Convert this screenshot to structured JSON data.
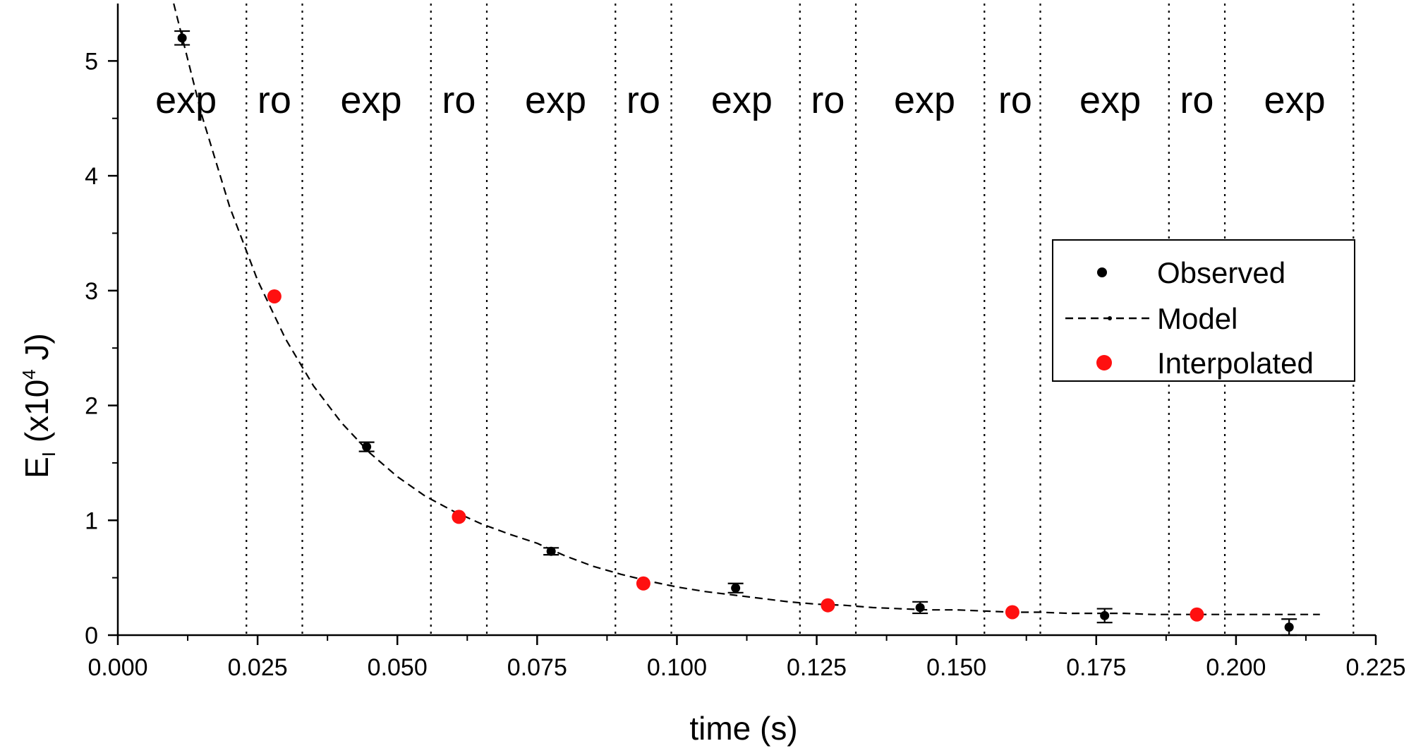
{
  "chart_data": {
    "type": "scatter",
    "xlabel": "time (s)",
    "ylabel": {
      "base": "E",
      "sub": "I",
      "rest_before_sup": " (x10",
      "sup": "4",
      "rest_after_sup": " J)"
    },
    "xlim": [
      0.0,
      0.225
    ],
    "ylim": [
      0,
      5.5
    ],
    "x_ticks": [
      0.0,
      0.025,
      0.05,
      0.075,
      0.1,
      0.125,
      0.15,
      0.175,
      0.2,
      0.225
    ],
    "x_tick_labels": [
      "0.000",
      "0.025",
      "0.050",
      "0.075",
      "0.100",
      "0.125",
      "0.150",
      "0.175",
      "0.200",
      "0.225"
    ],
    "y_ticks": [
      0,
      1,
      2,
      3,
      4,
      5
    ],
    "y_tick_labels": [
      "0",
      "1",
      "2",
      "3",
      "4",
      "5"
    ],
    "legend_position": "right",
    "legend": [
      {
        "label": "Observed",
        "style": "black-dot"
      },
      {
        "label": "Model",
        "style": "dashed-line"
      },
      {
        "label": "Interpolated",
        "style": "red-dot"
      }
    ],
    "series": [
      {
        "name": "Observed",
        "color": "#000000",
        "x": [
          0.0115,
          0.0445,
          0.0775,
          0.1105,
          0.1435,
          0.1765,
          0.2095
        ],
        "y": [
          5.2,
          1.64,
          0.73,
          0.41,
          0.24,
          0.17,
          0.07
        ],
        "error": [
          0.06,
          0.04,
          0.03,
          0.04,
          0.05,
          0.06,
          0.07
        ]
      },
      {
        "name": "Interpolated",
        "color": "#ff1010",
        "x": [
          0.028,
          0.061,
          0.094,
          0.127,
          0.16,
          0.193
        ],
        "y": [
          2.95,
          1.03,
          0.45,
          0.26,
          0.2,
          0.18
        ]
      },
      {
        "name": "Model",
        "color": "#000000",
        "line": "dashed",
        "x": [
          0.01,
          0.015,
          0.02,
          0.025,
          0.03,
          0.035,
          0.04,
          0.045,
          0.05,
          0.055,
          0.06,
          0.065,
          0.07,
          0.075,
          0.08,
          0.085,
          0.09,
          0.095,
          0.1,
          0.105,
          0.11,
          0.115,
          0.12,
          0.125,
          0.13,
          0.135,
          0.14,
          0.145,
          0.15,
          0.155,
          0.16,
          0.165,
          0.17,
          0.175,
          0.18,
          0.185,
          0.19,
          0.195,
          0.2,
          0.205,
          0.21,
          0.215
        ],
        "y": [
          5.54,
          4.53,
          3.73,
          3.09,
          2.58,
          2.17,
          1.85,
          1.59,
          1.38,
          1.21,
          1.08,
          0.97,
          0.88,
          0.8,
          0.69,
          0.6,
          0.53,
          0.47,
          0.42,
          0.38,
          0.35,
          0.32,
          0.29,
          0.27,
          0.26,
          0.24,
          0.23,
          0.22,
          0.22,
          0.21,
          0.2,
          0.2,
          0.19,
          0.19,
          0.19,
          0.18,
          0.18,
          0.18,
          0.18,
          0.18,
          0.18,
          0.18
        ]
      }
    ],
    "vertical_dotted_lines": [
      0.023,
      0.033,
      0.056,
      0.066,
      0.089,
      0.099,
      0.122,
      0.132,
      0.155,
      0.165,
      0.188,
      0.198,
      0.221
    ],
    "region_labels": [
      {
        "text": "exp",
        "x": 0.0122
      },
      {
        "text": "ro",
        "x": 0.028
      },
      {
        "text": "exp",
        "x": 0.0453
      },
      {
        "text": "ro",
        "x": 0.061
      },
      {
        "text": "exp",
        "x": 0.0783
      },
      {
        "text": "ro",
        "x": 0.094
      },
      {
        "text": "exp",
        "x": 0.1116
      },
      {
        "text": "ro",
        "x": 0.127
      },
      {
        "text": "exp",
        "x": 0.1443
      },
      {
        "text": "ro",
        "x": 0.1605
      },
      {
        "text": "exp",
        "x": 0.1775
      },
      {
        "text": "ro",
        "x": 0.193
      },
      {
        "text": "exp",
        "x": 0.2105
      }
    ]
  }
}
